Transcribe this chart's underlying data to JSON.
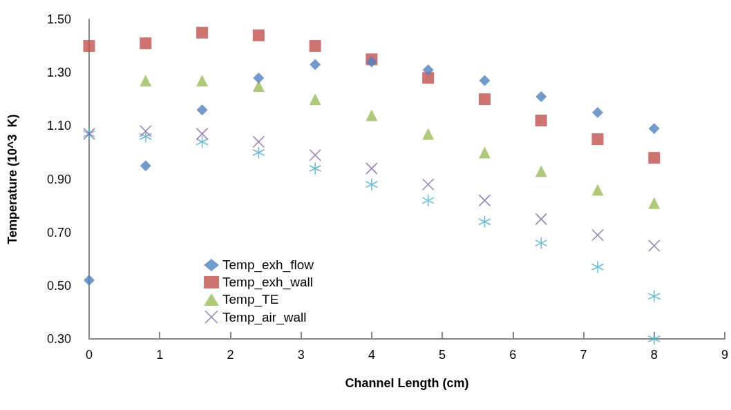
{
  "chart_data": {
    "type": "scatter",
    "xlabel": "Channel Length (cm)",
    "ylabel": "Temperature (10^3  K)",
    "xlim": [
      0,
      9
    ],
    "xticks": [
      0,
      1,
      2,
      3,
      4,
      5,
      6,
      7,
      8,
      9
    ],
    "ylim": [
      0.3,
      1.5
    ],
    "yticks": [
      {
        "value": 0.3,
        "label": "0.30"
      },
      {
        "value": 0.5,
        "label": "0.50"
      },
      {
        "value": 0.7,
        "label": "0.70"
      },
      {
        "value": 0.9,
        "label": "0.90"
      },
      {
        "value": 1.1,
        "label": "1.10"
      },
      {
        "value": 1.3,
        "label": "1.30"
      },
      {
        "value": 1.5,
        "label": "1.50"
      }
    ],
    "grid": false,
    "legend": "bottom left",
    "x": [
      0,
      0.8,
      1.6,
      2.4,
      3.2,
      4.0,
      4.8,
      5.6,
      6.4,
      7.2,
      8.0
    ],
    "series": [
      {
        "name": "Temp_exh_flow",
        "color": "#4f81bd",
        "marker": "diamond",
        "values": [
          0.52,
          0.95,
          1.16,
          1.28,
          1.33,
          1.34,
          1.31,
          1.27,
          1.21,
          1.15,
          1.09
        ]
      },
      {
        "name": "Temp_exh_wall",
        "color": "#c0504d",
        "marker": "square",
        "values": [
          1.4,
          1.41,
          1.45,
          1.44,
          1.4,
          1.35,
          1.28,
          1.2,
          1.12,
          1.05,
          0.98
        ]
      },
      {
        "name": "Temp_TE",
        "color": "#9bbb59",
        "marker": "triangle",
        "values": [
          null,
          1.27,
          1.27,
          1.25,
          1.2,
          1.14,
          1.07,
          1.0,
          0.93,
          0.86,
          0.81
        ]
      },
      {
        "name": "Temp_air_wall",
        "color": "#8064a2",
        "marker": "cross",
        "values": [
          1.07,
          1.08,
          1.07,
          1.04,
          0.99,
          0.94,
          0.88,
          0.82,
          0.75,
          0.69,
          0.65
        ]
      },
      {
        "color": "#4bacc6",
        "marker": "cross",
        "x": [
          0,
          0.8,
          1.6,
          2.4,
          3.2,
          4.0,
          4.8,
          5.6,
          6.4,
          7.2,
          8.0,
          8.0
        ],
        "values": [
          1.07,
          1.06,
          1.04,
          1.0,
          0.94,
          0.88,
          0.82,
          0.74,
          0.66,
          0.57,
          0.46,
          0.3
        ]
      }
    ]
  }
}
